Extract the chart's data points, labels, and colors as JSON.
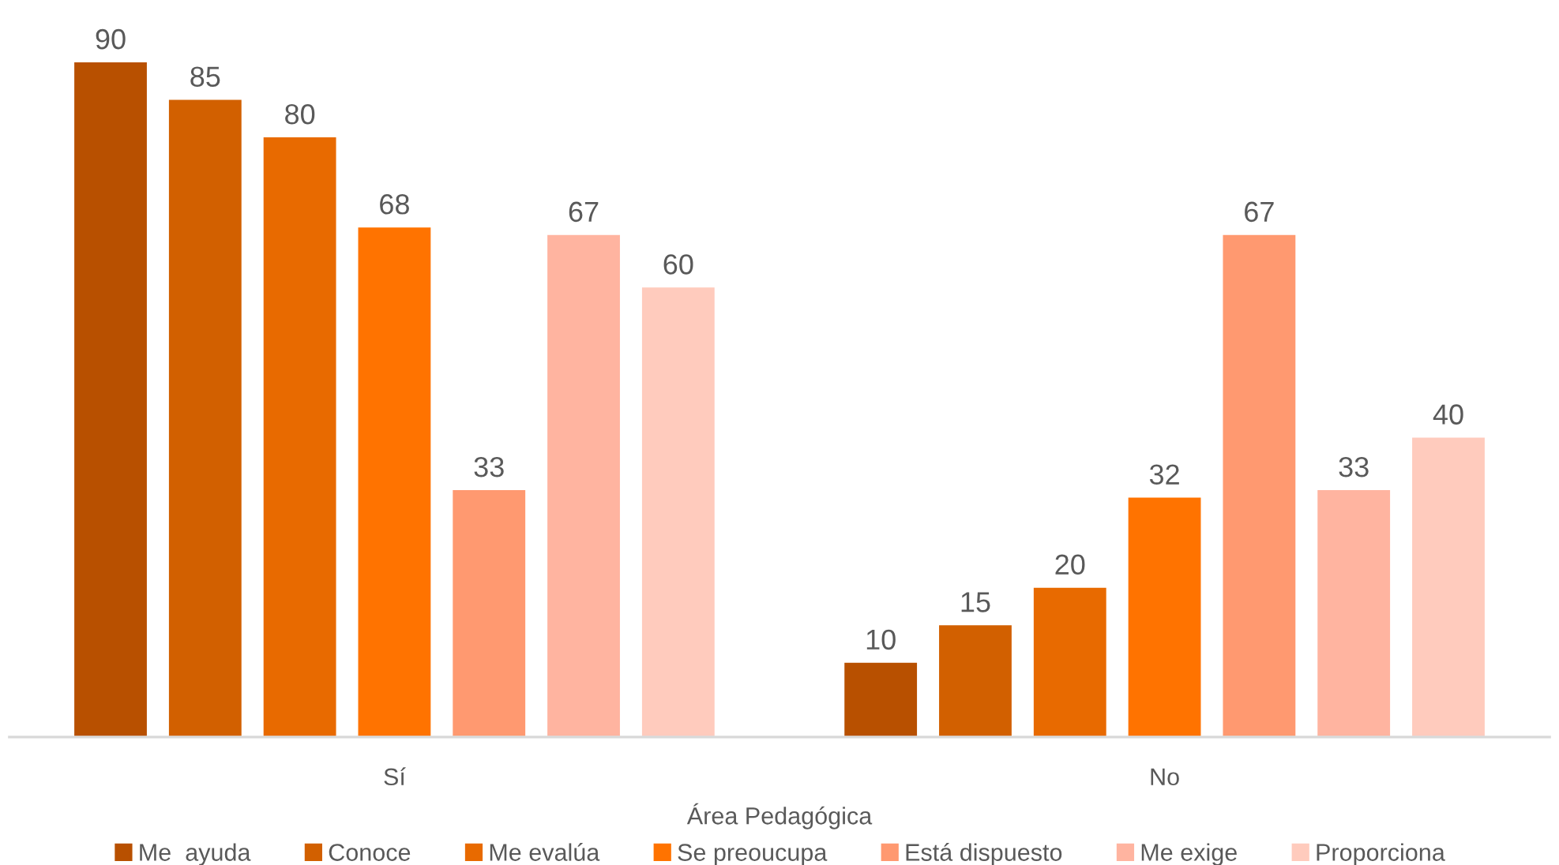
{
  "chart_data": {
    "type": "bar",
    "categories": [
      "Sí",
      "No"
    ],
    "xlabel": "Área Pedagógica",
    "series": [
      {
        "name": "Me  ayuda",
        "color": "#b85000",
        "values": [
          90,
          10
        ]
      },
      {
        "name": "Conoce",
        "color": "#d26000",
        "values": [
          85,
          15
        ]
      },
      {
        "name": "Me evalúa",
        "color": "#e86a00",
        "values": [
          80,
          20
        ]
      },
      {
        "name": "Se preoucupa",
        "color": "#ff7300",
        "values": [
          68,
          32
        ]
      },
      {
        "name": "Está dispuesto",
        "color": "#ff9970",
        "values": [
          33,
          67
        ]
      },
      {
        "name": "Me exige",
        "color": "#ffb4a0",
        "values": [
          67,
          33
        ]
      },
      {
        "name": "Proporciona",
        "color": "#ffcbbd",
        "values": [
          60,
          40
        ]
      }
    ],
    "data_labels": true,
    "legend": "bottom",
    "tick_labels": "x"
  }
}
